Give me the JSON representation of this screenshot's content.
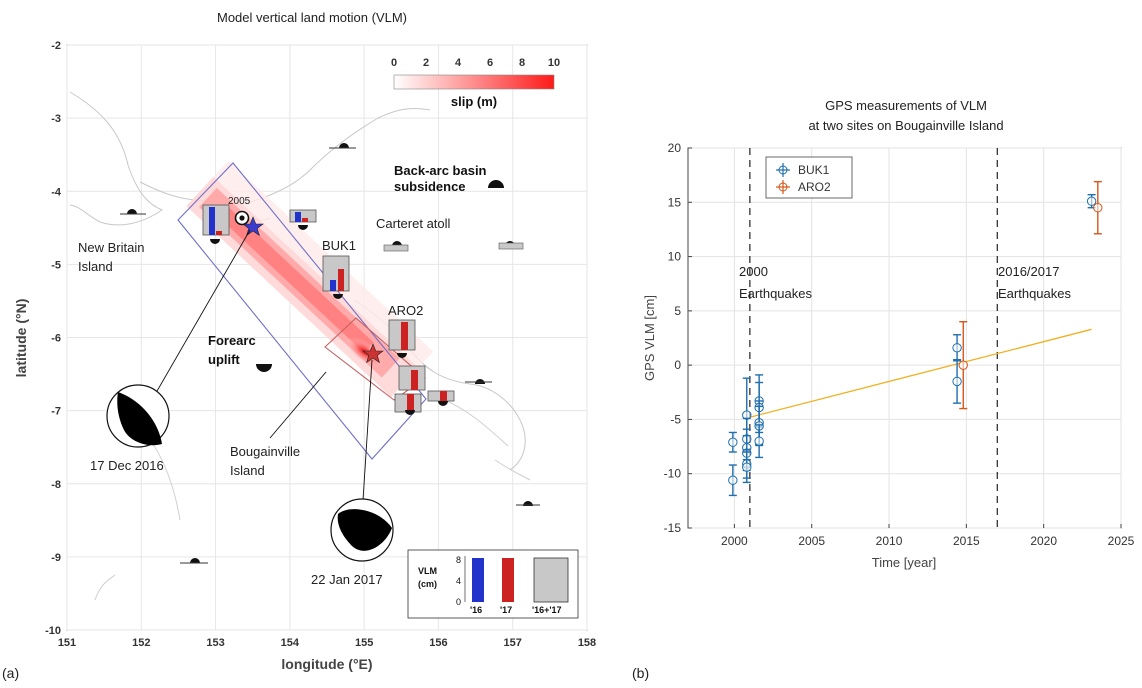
{
  "panel_a": {
    "panel_label": "(a)",
    "title": "Model vertical land motion (VLM)",
    "colorbar": {
      "ticks": [
        "0",
        "2",
        "4",
        "6",
        "8",
        "10"
      ],
      "label": "slip (m)",
      "min_color": "#ffffff",
      "max_color": "#ff1a1a"
    },
    "annotations": {
      "back_arc_1": "Back-arc basin",
      "back_arc_2": "subsidence",
      "forearc_1": "Forearc",
      "forearc_2": "uplift",
      "new_britain_1": "New Britain",
      "new_britain_2": "Island",
      "carteret": "Carteret atoll",
      "buk1": "BUK1",
      "aro2": "ARO2",
      "bougainville_1": "Bougainville",
      "bougainville_2": "Island",
      "year_2005": "2005",
      "date_2016": "17 Dec 2016",
      "date_2017": "22 Jan 2017"
    },
    "legend_box": {
      "title": "VLM",
      "unit": "(cm)",
      "ticks": [
        "8",
        "4",
        "0"
      ],
      "bars": [
        "'16",
        "'17",
        "'16+'17"
      ],
      "color_2016": "#2233cc",
      "color_2017": "#cc2222",
      "color_total": "#c8c8c8"
    }
  },
  "panel_b": {
    "panel_label": "(b)",
    "title_line1": "GPS measurements of VLM",
    "title_line2": "at two sites on Bougainville Island",
    "legend": [
      "BUK1",
      "ARO2"
    ],
    "annotations": [
      "2000",
      "Earthquakes",
      "2016/2017",
      "Earthquakes"
    ]
  },
  "chart_data": [
    {
      "type": "heatmap",
      "title": "Model vertical land motion (VLM)",
      "xlabel": "longitude (°E)",
      "ylabel": "latitude (°N)",
      "xlim": [
        151,
        158
      ],
      "ylim": [
        -10,
        -2
      ],
      "xticks": [
        "151",
        "152",
        "153",
        "154",
        "155",
        "156",
        "157",
        "158"
      ],
      "yticks": [
        "-2",
        "-3",
        "-4",
        "-5",
        "-6",
        "-7",
        "-8",
        "-9",
        "-10"
      ],
      "colorbar": {
        "label": "slip (m)",
        "range": [
          0,
          10
        ]
      },
      "grid": true,
      "epicenters": [
        {
          "name": "17 Dec 2016",
          "lon": 153.55,
          "lat": -4.5
        },
        {
          "name": "22 Jan 2017",
          "lon": 155.15,
          "lat": -6.25
        }
      ],
      "stations": [
        {
          "name": "BUK1",
          "lon": 154.8,
          "lat": -5.4
        },
        {
          "name": "ARO2",
          "lon": 155.3,
          "lat": -6.2
        }
      ],
      "marked_year": {
        "text": "2005",
        "lon": 153.35,
        "lat": -4.38
      }
    },
    {
      "type": "scatter",
      "title": "GPS measurements of VLM at two sites on Bougainville Island",
      "xlabel": "Time [year]",
      "ylabel": "GPS VLM [cm]",
      "xlim": [
        1997,
        2025
      ],
      "ylim": [
        -15,
        20
      ],
      "xticks": [
        "2000",
        "2005",
        "2010",
        "2015",
        "2020",
        "2025"
      ],
      "yticks": [
        "-15",
        "-10",
        "-5",
        "0",
        "5",
        "10",
        "15",
        "20"
      ],
      "grid": true,
      "legend_position": "top-left",
      "series": [
        {
          "name": "BUK1",
          "color": "#1f6fad",
          "points": [
            {
              "x": 1999.9,
              "y": -7.1,
              "err": 0.9
            },
            {
              "x": 1999.9,
              "y": -10.6,
              "err": 1.4
            },
            {
              "x": 2000.8,
              "y": -4.6,
              "err": 3.4
            },
            {
              "x": 2000.8,
              "y": -6.8,
              "err": 1.9
            },
            {
              "x": 2000.8,
              "y": -7.6,
              "err": 1.7
            },
            {
              "x": 2000.8,
              "y": -8.1,
              "err": 1.6
            },
            {
              "x": 2000.8,
              "y": -9.1,
              "err": 1.3
            },
            {
              "x": 2000.8,
              "y": -9.4,
              "err": 1.4
            },
            {
              "x": 2001.6,
              "y": -3.3,
              "err": 2.4
            },
            {
              "x": 2001.6,
              "y": -3.9,
              "err": 2.3
            },
            {
              "x": 2001.6,
              "y": -5.3,
              "err": 2.0
            },
            {
              "x": 2001.6,
              "y": -5.6,
              "err": 1.8
            },
            {
              "x": 2001.6,
              "y": -7.0,
              "err": 1.5
            },
            {
              "x": 2014.4,
              "y": 1.6,
              "err": 1.2
            },
            {
              "x": 2014.4,
              "y": -1.5,
              "err": 2.0
            },
            {
              "x": 2023.1,
              "y": 15.1,
              "err": 0.6
            }
          ]
        },
        {
          "name": "ARO2",
          "color": "#d4561b",
          "points": [
            {
              "x": 2014.8,
              "y": 0.0,
              "err": 4.0
            },
            {
              "x": 2023.5,
              "y": 14.5,
              "err": 2.4
            }
          ]
        }
      ],
      "trend": {
        "color": "#f0b020",
        "x": [
          2001.0,
          2023.1
        ],
        "y": [
          -4.8,
          3.3
        ]
      },
      "vlines": [
        {
          "x": 2001.0,
          "label": "2000 Earthquakes"
        },
        {
          "x": 2017.0,
          "label": "2016/2017 Earthquakes"
        }
      ]
    }
  ]
}
